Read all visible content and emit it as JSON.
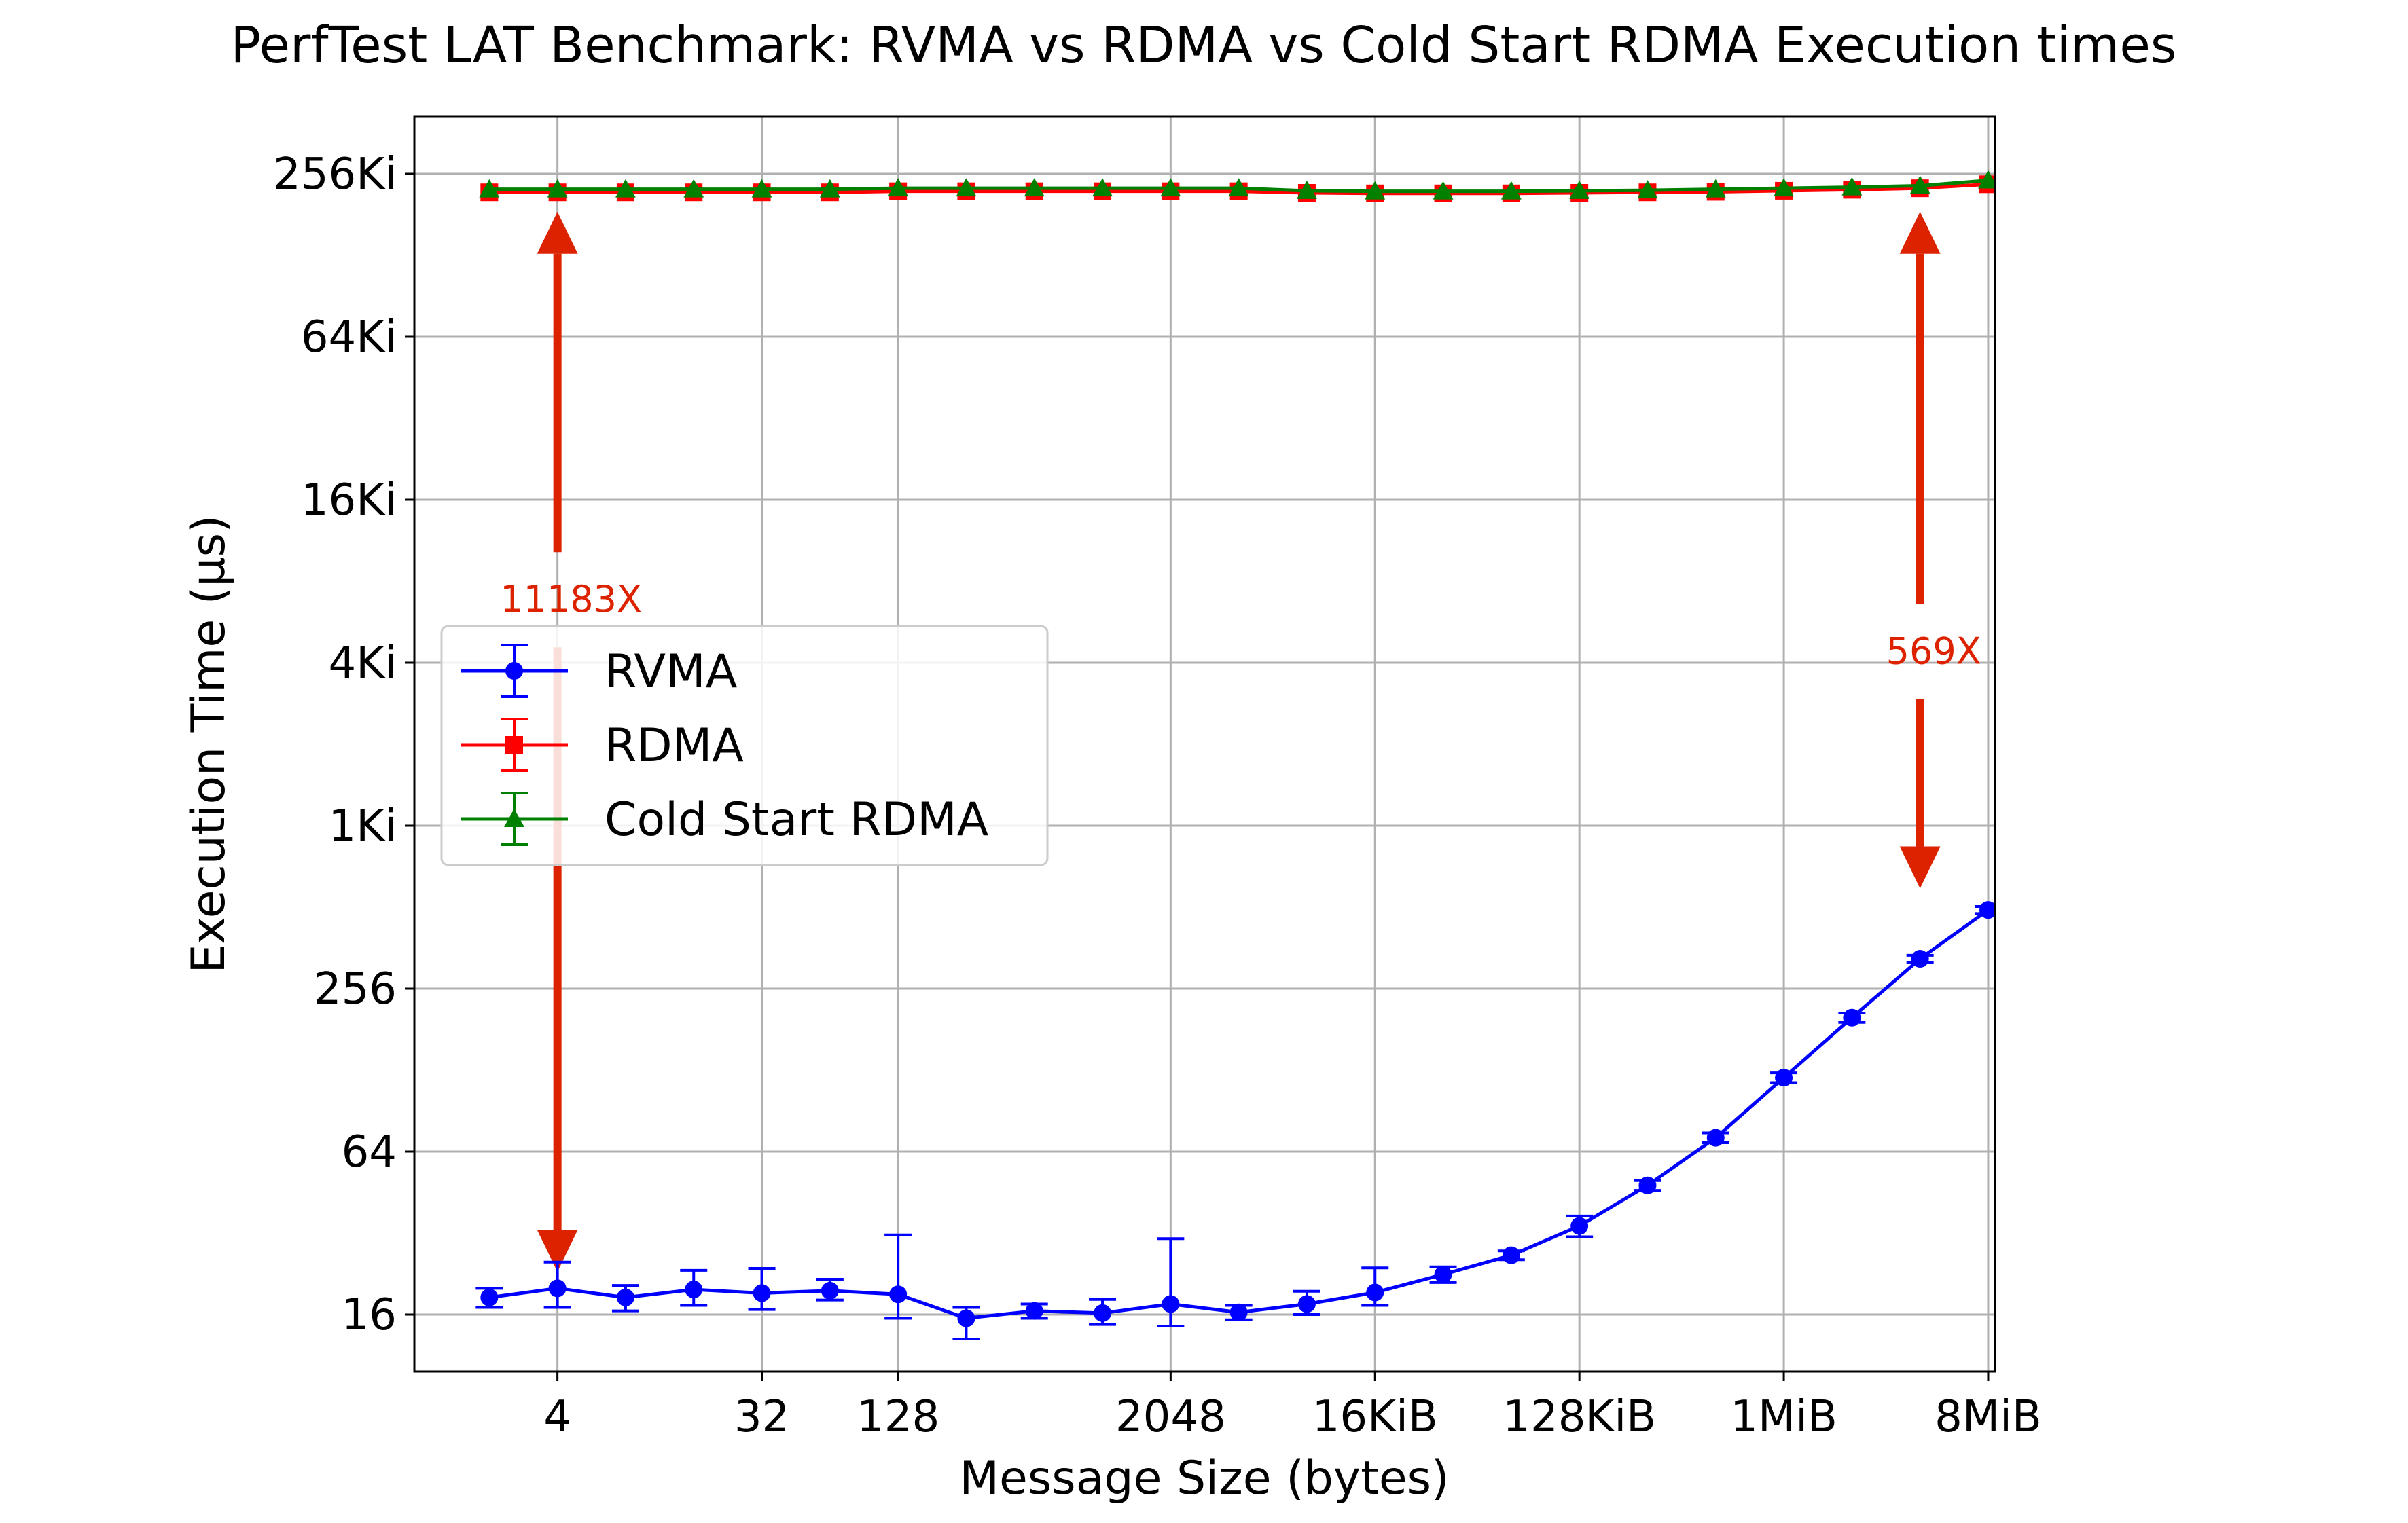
{
  "chart_data": {
    "type": "line",
    "title": "PerfTest LAT Benchmark: RVMA vs RDMA vs Cold Start RDMA Execution times",
    "xlabel": "Message Size (bytes)",
    "ylabel": "Execution Time (µs)",
    "x_scale": "log2",
    "y_scale": "log2",
    "x_exponents": [
      1,
      2,
      3,
      4,
      5,
      6,
      7,
      8,
      9,
      10,
      11,
      12,
      13,
      14,
      15,
      16,
      17,
      18,
      19,
      20,
      21,
      22,
      23
    ],
    "x_ticks": [
      {
        "exp": 2,
        "label": "4"
      },
      {
        "exp": 5,
        "label": "32"
      },
      {
        "exp": 7,
        "label": "128"
      },
      {
        "exp": 11,
        "label": "2048"
      },
      {
        "exp": 14,
        "label": "16KiB"
      },
      {
        "exp": 17,
        "label": "128KiB"
      },
      {
        "exp": 20,
        "label": "1MiB"
      },
      {
        "exp": 23,
        "label": "8MiB"
      }
    ],
    "y_ticks": [
      {
        "exp": 4,
        "label": "16"
      },
      {
        "exp": 6,
        "label": "64"
      },
      {
        "exp": 8,
        "label": "256"
      },
      {
        "exp": 10,
        "label": "1Ki"
      },
      {
        "exp": 12,
        "label": "4Ki"
      },
      {
        "exp": 14,
        "label": "16Ki"
      },
      {
        "exp": 16,
        "label": "64Ki"
      },
      {
        "exp": 18,
        "label": "256Ki"
      }
    ],
    "xlim_exp": [
      -0.1,
      23.1
    ],
    "ylim_exp": [
      3.3,
      18.7
    ],
    "grid": true,
    "legend_position": "center-left",
    "series": [
      {
        "name": "RVMA",
        "color": "#0000ff",
        "marker": "circle",
        "values": [
          18.5,
          20.0,
          18.5,
          19.8,
          19.2,
          19.6,
          19.0,
          15.5,
          16.5,
          16.2,
          17.5,
          16.3,
          17.5,
          19.3,
          22.5,
          26.5,
          34.0,
          48.0,
          72.0,
          120.0,
          200.0,
          330.0,
          500.0
        ],
        "err_low": [
          1.5,
          3.0,
          2.0,
          2.5,
          2.5,
          1.5,
          3.5,
          2.5,
          1.0,
          1.5,
          3.0,
          1.0,
          1.5,
          2.0,
          1.5,
          1.0,
          3.0,
          2.0,
          3.0,
          5.0,
          8.0,
          10.0,
          15.0
        ],
        "err_high": [
          1.5,
          5.0,
          2.0,
          3.5,
          4.5,
          2.0,
          12.5,
          1.5,
          1.0,
          2.0,
          13.0,
          1.0,
          2.0,
          4.5,
          1.5,
          1.0,
          3.0,
          2.0,
          3.0,
          5.0,
          8.0,
          10.0,
          15.0
        ]
      },
      {
        "name": "RDMA",
        "color": "#ff0000",
        "marker": "square",
        "values": [
          224000,
          224000,
          224000,
          224000,
          224000,
          224000,
          226000,
          226000,
          226000,
          226000,
          226000,
          226000,
          223000,
          222000,
          222000,
          222000,
          223000,
          224000,
          225000,
          227000,
          229000,
          232000,
          240000
        ]
      },
      {
        "name": "Cold Start RDMA",
        "color": "#008000",
        "marker": "triangle",
        "values": [
          230000,
          230000,
          230000,
          230000,
          230000,
          230000,
          232000,
          232000,
          232000,
          232000,
          232000,
          232000,
          227000,
          226000,
          226000,
          226000,
          227000,
          228000,
          230000,
          232000,
          234000,
          237000,
          248000
        ]
      }
    ],
    "annotations": [
      {
        "label": "11183X",
        "color": "#dd2200",
        "x_exp": 2,
        "y_top": 190000,
        "y_bottom": 23,
        "label_y": 7000
      },
      {
        "label": "569X",
        "color": "#dd2200",
        "x_exp": 22,
        "y_top": 190000,
        "y_bottom": 600,
        "label_y": 4500
      }
    ]
  }
}
